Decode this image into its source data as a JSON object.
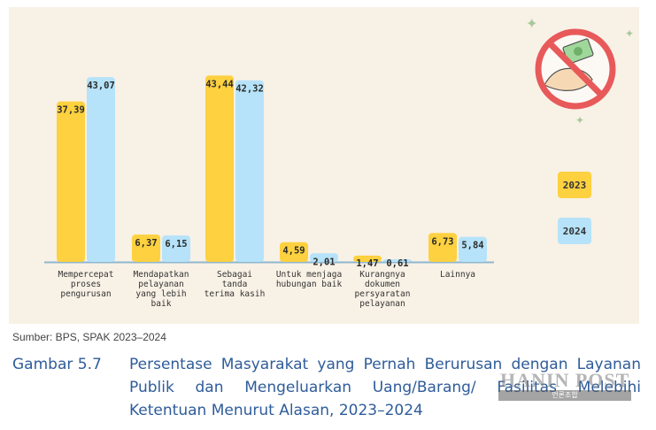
{
  "chart_data": {
    "type": "bar",
    "categories": [
      [
        "Mempercepat",
        "proses",
        "pengurusan"
      ],
      [
        "Mendapatkan",
        "pelayanan",
        "yang lebih",
        "baik"
      ],
      [
        "Sebagai",
        "tanda",
        "terima kasih"
      ],
      [
        "Untuk menjaga",
        "hubungan baik"
      ],
      [
        "Kurangnya",
        "dokumen",
        "persyaratan",
        "pelayanan"
      ],
      [
        "Lainnya"
      ]
    ],
    "series": [
      {
        "name": "2023",
        "color": "#fdd13f",
        "values": [
          37.39,
          6.37,
          43.44,
          4.59,
          1.47,
          6.73
        ],
        "labels": [
          "37,39",
          "6,37",
          "43,44",
          "4,59",
          "1,47",
          "6,73"
        ]
      },
      {
        "name": "2024",
        "color": "#b6e3f9",
        "values": [
          43.07,
          6.15,
          42.32,
          2.01,
          0.61,
          5.84
        ],
        "labels": [
          "43,07",
          "6,15",
          "42,32",
          "2,01",
          "0,61",
          "5,84"
        ]
      }
    ],
    "ylim": [
      0,
      50
    ],
    "legend": "right"
  },
  "source": "Sumber: BPS, SPAK 2023–2024",
  "caption": {
    "label": "Gambar 5.7",
    "text": "Persentase Masyarakat yang Pernah Berurusan dengan Layanan Publik dan Mengeluarkan Uang/Barang/ Fasilitas Melebihi Ketentuan Menurut Alasan, 2023–2024"
  },
  "watermark": {
    "text": "HANIN POST",
    "sub": "언론조합"
  },
  "icons": {
    "decoration": "no-bribe-icon"
  }
}
